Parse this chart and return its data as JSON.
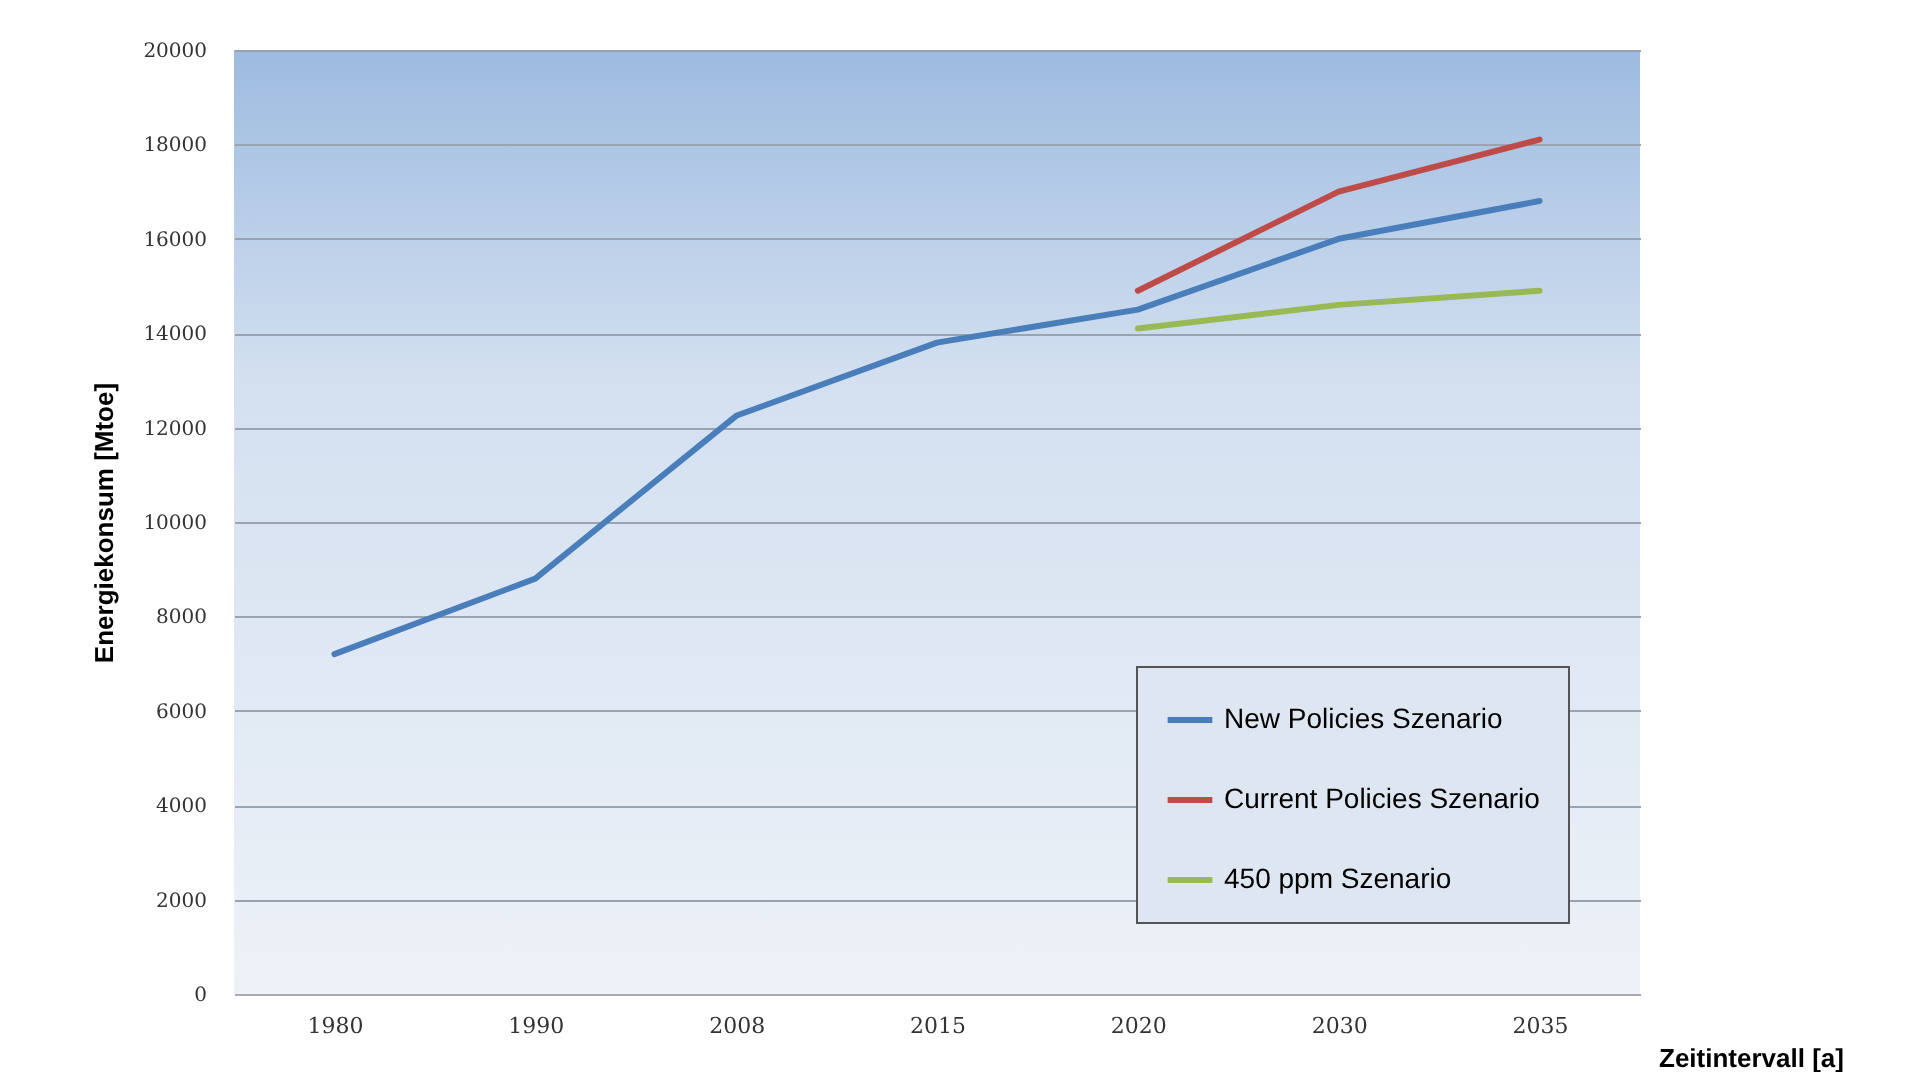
{
  "chart_data": {
    "type": "line",
    "xlabel": "Zeitintervall [a]",
    "ylabel": "Energiekonsum [Mtoe]",
    "categories": [
      "1980",
      "1990",
      "2008",
      "2015",
      "2020",
      "2030",
      "2035"
    ],
    "series": [
      {
        "name": "New Policies Szenario",
        "color": "#4a7ebb",
        "values": [
          7200,
          8800,
          12250,
          13800,
          14500,
          16000,
          16800
        ]
      },
      {
        "name": "Current Policies Szenario",
        "color": "#be4b48",
        "values": [
          null,
          null,
          null,
          null,
          14900,
          17000,
          18100
        ]
      },
      {
        "name": "450 ppm Szenario",
        "color": "#98b954",
        "values": [
          null,
          null,
          null,
          null,
          14100,
          14600,
          14900
        ]
      }
    ],
    "ylim": [
      0,
      20000
    ],
    "yticks": [
      0,
      2000,
      4000,
      6000,
      8000,
      10000,
      12000,
      14000,
      16000,
      18000,
      20000
    ],
    "grid": "y",
    "legend": "bottom right",
    "marker": "none",
    "line_style": "solid"
  }
}
